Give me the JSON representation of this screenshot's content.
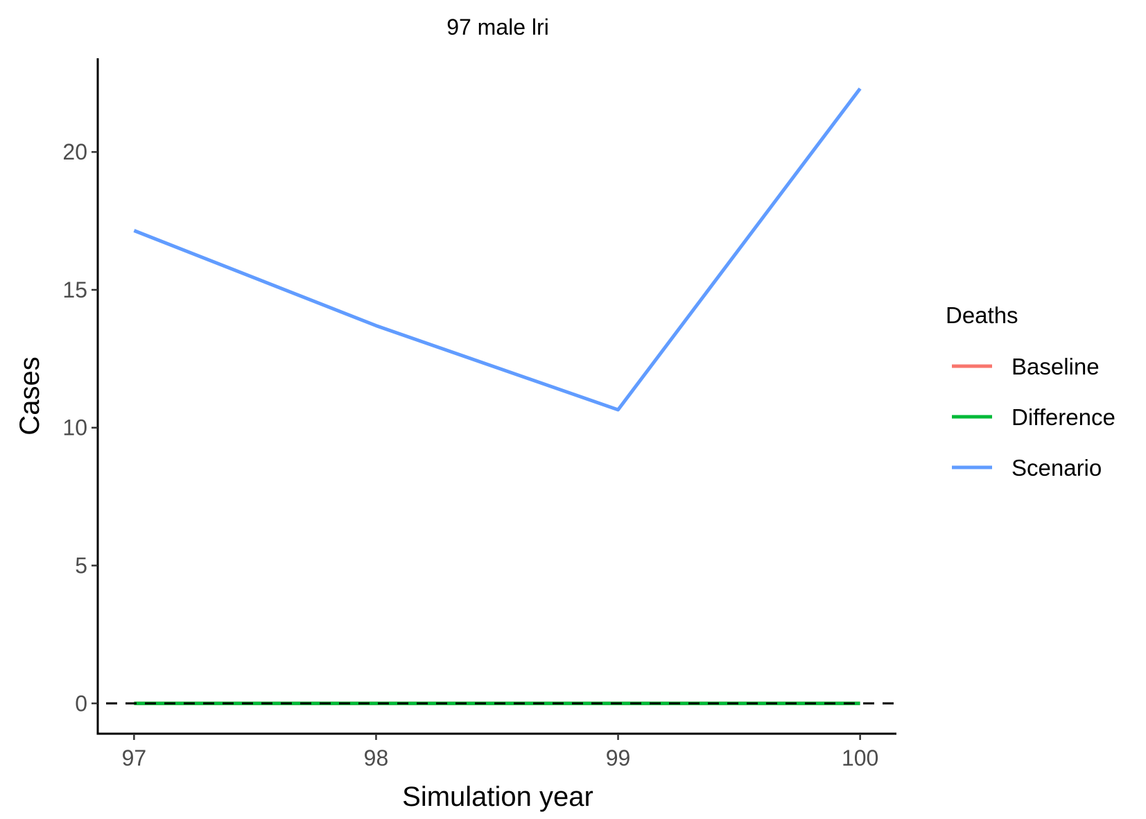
{
  "chart_data": {
    "type": "line",
    "title": "97 male lri",
    "xlabel": "Simulation year",
    "ylabel": "Cases",
    "x": [
      97,
      98,
      99,
      100
    ],
    "x_ticks": [
      "97",
      "98",
      "99",
      "100"
    ],
    "y_ticks": [
      "0",
      "5",
      "10",
      "15",
      "20"
    ],
    "xlim": [
      96.85,
      100.15
    ],
    "ylim": [
      -1.1,
      23.4
    ],
    "grid": false,
    "reference_line": {
      "y": 0,
      "style": "dashed",
      "color": "#000000"
    },
    "legend": {
      "title": "Deaths",
      "position": "right",
      "entries": [
        {
          "name": "Baseline",
          "color": "#F8766D"
        },
        {
          "name": "Difference",
          "color": "#00BA38"
        },
        {
          "name": "Scenario",
          "color": "#619CFF"
        }
      ]
    },
    "series": [
      {
        "name": "Baseline",
        "color": "#F8766D",
        "values": [
          0,
          0,
          0,
          0
        ]
      },
      {
        "name": "Difference",
        "color": "#00BA38",
        "values": [
          0,
          0,
          0,
          0
        ]
      },
      {
        "name": "Scenario",
        "color": "#619CFF",
        "values": [
          17.15,
          13.7,
          10.65,
          22.3
        ]
      }
    ]
  }
}
